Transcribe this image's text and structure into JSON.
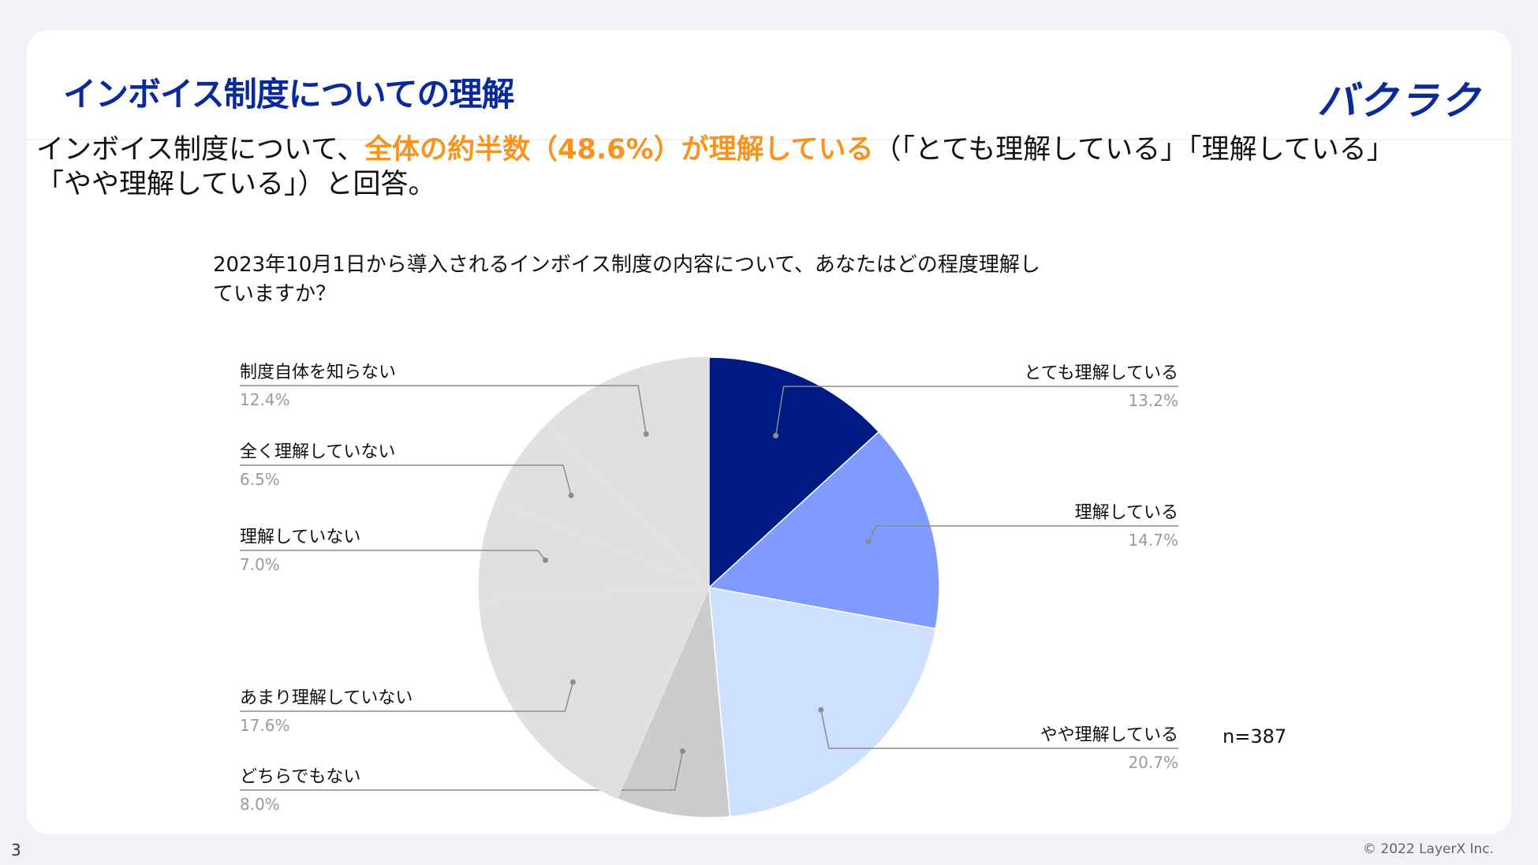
{
  "header": {
    "title": "インボイス制度についての理解",
    "logo_text": "バクラク"
  },
  "summary": {
    "prefix": "インボイス制度について、",
    "highlight": "全体の約半数（48.6%）が理解している",
    "suffix_line1": "（「とても理解している」「理解している」",
    "line2": "「やや理解している」）と回答。"
  },
  "chart_data": {
    "type": "pie",
    "title_line1": "2023年10月1日から導入されるインボイス制度の内容について、あなたはどの程度理解し",
    "title_line2": "ていますか？",
    "slices": [
      {
        "label": "とても理解している",
        "value": 13.2,
        "value_label": "13.2%",
        "color": "#001a84"
      },
      {
        "label": "理解している",
        "value": 14.7,
        "value_label": "14.7%",
        "color": "#7f9bff"
      },
      {
        "label": "やや理解している",
        "value": 20.7,
        "value_label": "20.7%",
        "color": "#cde0ff"
      },
      {
        "label": "どちらでもない",
        "value": 8.0,
        "value_label": "8.0%",
        "color": "#cccccc"
      },
      {
        "label": "あまり理解していない",
        "value": 17.6,
        "value_label": "17.6%",
        "color": "#e0e0e0"
      },
      {
        "label": "理解していない",
        "value": 7.0,
        "value_label": "7.0%",
        "color": "#e0e0e0"
      },
      {
        "label": "全く理解していない",
        "value": 6.5,
        "value_label": "6.5%",
        "color": "#e0e0e0"
      },
      {
        "label": "制度自体を知らない",
        "value": 12.4,
        "value_label": "12.4%",
        "color": "#e0e0e0"
      }
    ],
    "note": "n=387"
  },
  "footer": {
    "page_number": "3",
    "copyright": "© 2022 LayerX Inc."
  }
}
